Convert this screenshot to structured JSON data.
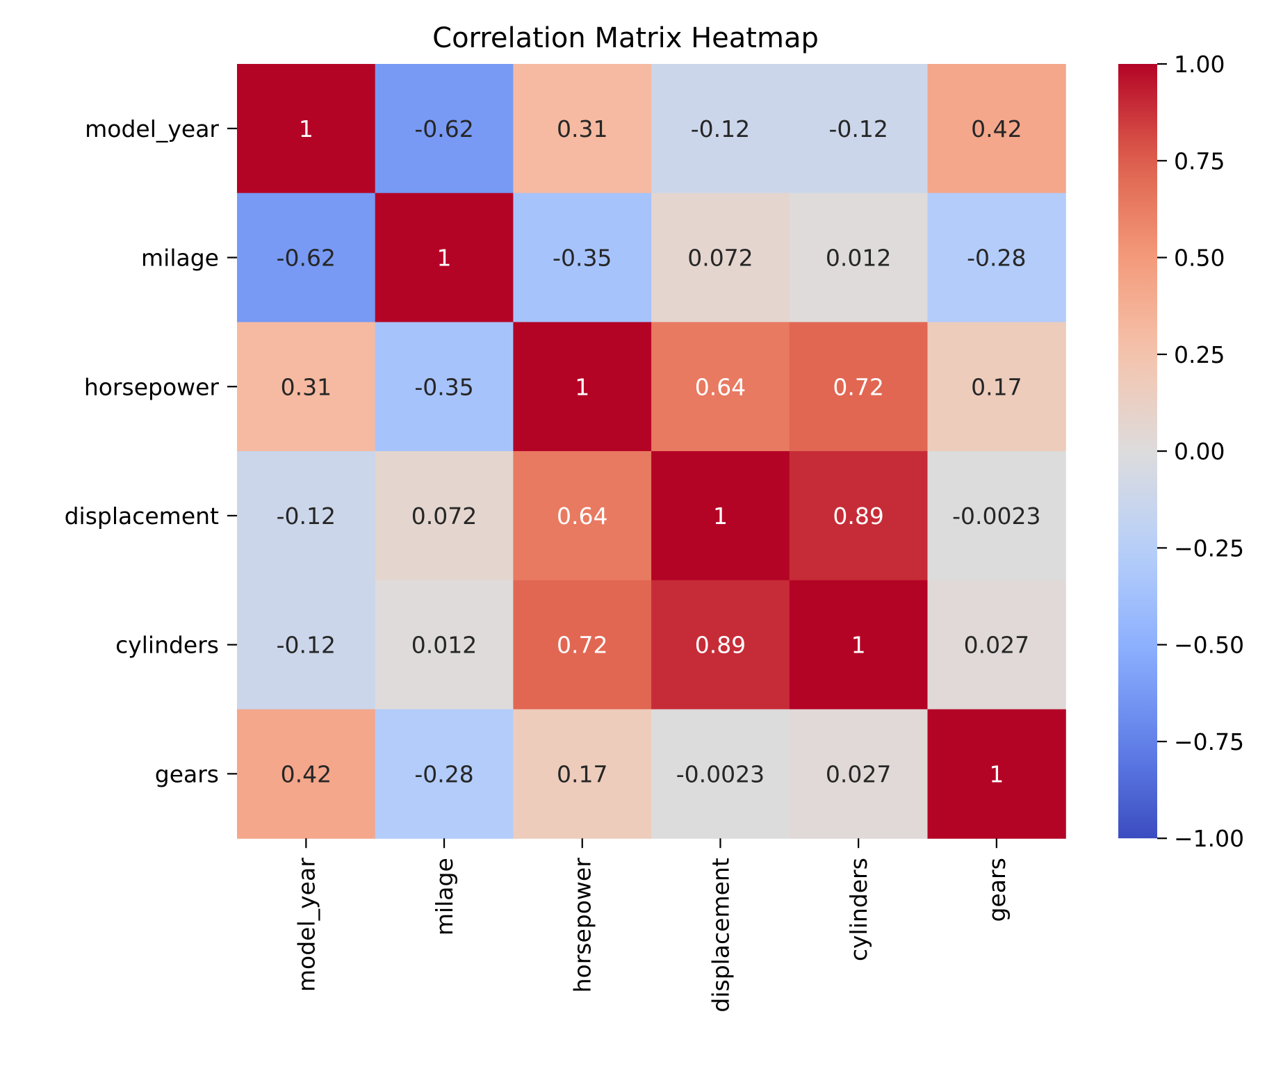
{
  "chart_data": {
    "type": "heatmap",
    "title": "Correlation Matrix Heatmap",
    "xlabel": "",
    "ylabel": "",
    "x_categories": [
      "model_year",
      "milage",
      "horsepower",
      "displacement",
      "cylinders",
      "gears"
    ],
    "y_categories": [
      "model_year",
      "milage",
      "horsepower",
      "displacement",
      "cylinders",
      "gears"
    ],
    "values": [
      [
        1,
        -0.62,
        0.31,
        -0.12,
        -0.12,
        0.42
      ],
      [
        -0.62,
        1,
        -0.35,
        0.072,
        0.012,
        -0.28
      ],
      [
        0.31,
        -0.35,
        1,
        0.64,
        0.72,
        0.17
      ],
      [
        -0.12,
        0.072,
        0.64,
        1,
        0.89,
        -0.0023
      ],
      [
        -0.12,
        0.012,
        0.72,
        0.89,
        1,
        0.027
      ],
      [
        0.42,
        -0.28,
        0.17,
        -0.0023,
        0.027,
        1
      ]
    ],
    "annotations": [
      [
        "1",
        "-0.62",
        "0.31",
        "-0.12",
        "-0.12",
        "0.42"
      ],
      [
        "-0.62",
        "1",
        "-0.35",
        "0.072",
        "0.012",
        "-0.28"
      ],
      [
        "0.31",
        "-0.35",
        "1",
        "0.64",
        "0.72",
        "0.17"
      ],
      [
        "-0.12",
        "0.072",
        "0.64",
        "1",
        "0.89",
        "-0.0023"
      ],
      [
        "-0.12",
        "0.012",
        "0.72",
        "0.89",
        "1",
        "0.027"
      ],
      [
        "0.42",
        "-0.28",
        "0.17",
        "-0.0023",
        "0.027",
        "1"
      ]
    ],
    "colormap": "coolwarm",
    "vmin": -1,
    "vmax": 1,
    "colorbar": {
      "position": "right",
      "ticks": [
        1.0,
        0.75,
        0.5,
        0.25,
        0.0,
        -0.25,
        -0.5,
        -0.75,
        -1.0
      ],
      "tick_labels": [
        "1.00",
        "0.75",
        "0.50",
        "0.25",
        "0.00",
        "−0.25",
        "−0.50",
        "−0.75",
        "−1.00"
      ]
    },
    "grid": false
  }
}
